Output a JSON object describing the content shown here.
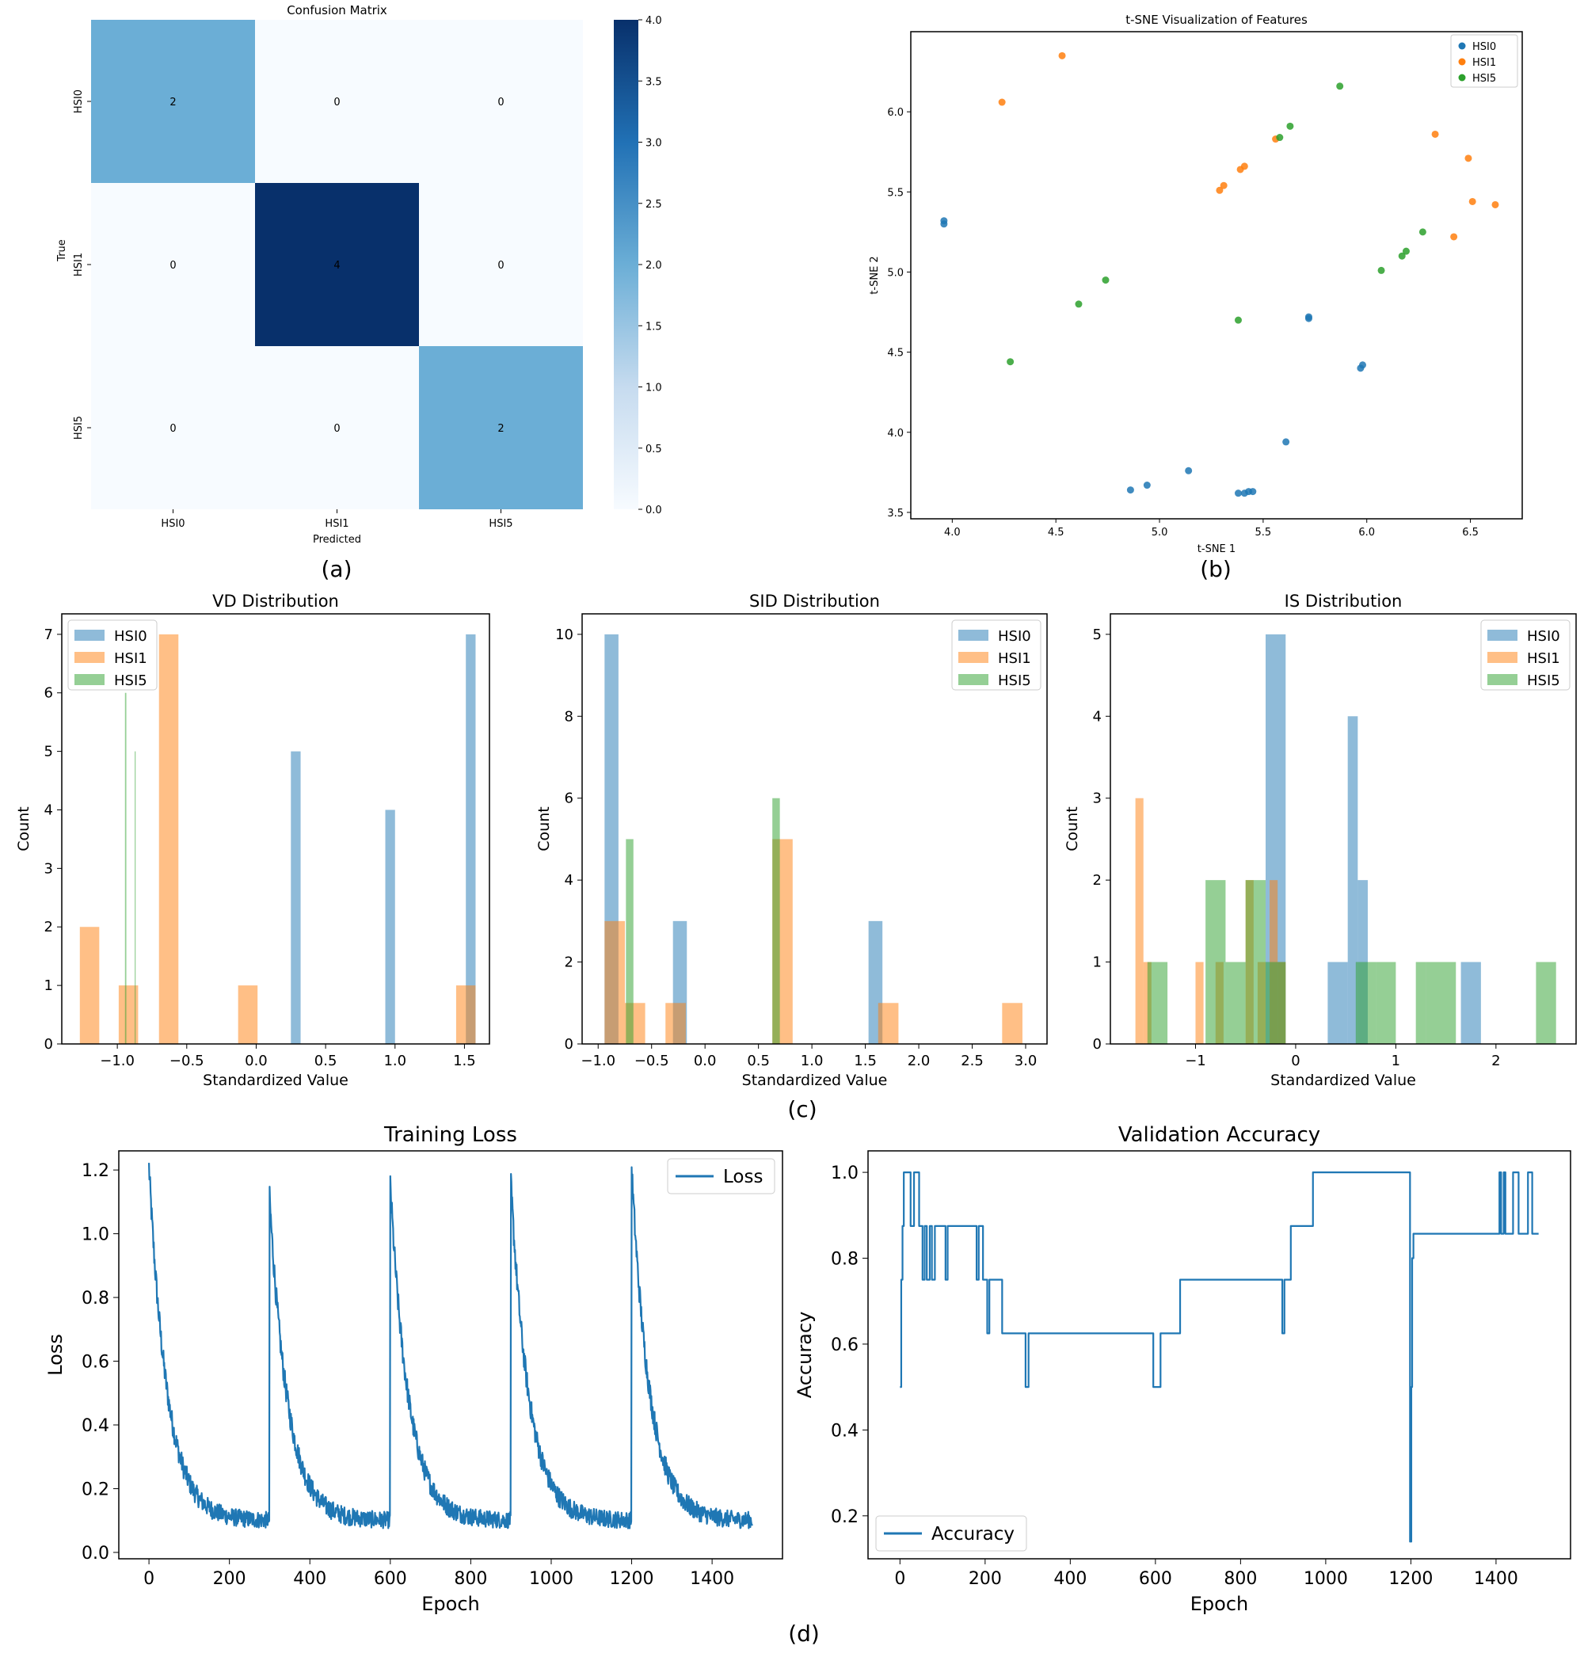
{
  "panel_labels": [
    "(a)",
    "(b)",
    "(c)",
    "(d)"
  ],
  "chart_data": [
    {
      "type": "heatmap",
      "title": "Confusion Matrix",
      "xlabel": "Predicted",
      "ylabel": "True",
      "x_categories": [
        "HSI0",
        "HSI1",
        "HSI5"
      ],
      "y_categories": [
        "HSI0",
        "HSI1",
        "HSI5"
      ],
      "matrix": [
        [
          2,
          0,
          0
        ],
        [
          0,
          4,
          0
        ],
        [
          0,
          0,
          2
        ]
      ],
      "colorbar": {
        "min": 0.0,
        "max": 4.0,
        "ticks": [
          "0.0",
          "0.5",
          "1.0",
          "1.5",
          "2.0",
          "2.5",
          "3.0",
          "3.5",
          "4.0"
        ]
      },
      "colors": {
        "low": "#f7fbff",
        "mid": "#6baed6",
        "high": "#08306b"
      }
    },
    {
      "type": "scatter",
      "title": "t-SNE Visualization of Features",
      "xlabel": "t-SNE 1",
      "ylabel": "t-SNE 2",
      "xlim": [
        3.8,
        6.75
      ],
      "ylim": [
        3.46,
        6.5
      ],
      "xticks": [
        "4.0",
        "4.5",
        "5.0",
        "5.5",
        "6.0",
        "6.5"
      ],
      "yticks": [
        "3.5",
        "4.0",
        "4.5",
        "5.0",
        "5.5",
        "6.0"
      ],
      "legend": "top-right",
      "series": [
        {
          "name": "HSI0",
          "color": "#1f77b4",
          "points": [
            [
              3.96,
              5.3
            ],
            [
              3.96,
              5.32
            ],
            [
              5.72,
              4.71
            ],
            [
              5.72,
              4.72
            ],
            [
              5.97,
              4.4
            ],
            [
              5.98,
              4.42
            ],
            [
              5.61,
              3.94
            ],
            [
              5.14,
              3.76
            ],
            [
              4.86,
              3.64
            ],
            [
              4.94,
              3.67
            ],
            [
              5.38,
              3.62
            ],
            [
              5.41,
              3.62
            ],
            [
              5.43,
              3.63
            ],
            [
              5.45,
              3.63
            ]
          ]
        },
        {
          "name": "HSI1",
          "color": "#ff7f0e",
          "points": [
            [
              4.53,
              6.35
            ],
            [
              4.24,
              6.06
            ],
            [
              5.56,
              5.83
            ],
            [
              5.39,
              5.64
            ],
            [
              5.41,
              5.66
            ],
            [
              5.29,
              5.51
            ],
            [
              5.31,
              5.54
            ],
            [
              6.33,
              5.86
            ],
            [
              6.49,
              5.71
            ],
            [
              6.51,
              5.44
            ],
            [
              6.62,
              5.42
            ],
            [
              6.42,
              5.22
            ]
          ]
        },
        {
          "name": "HSI5",
          "color": "#2ca02c",
          "points": [
            [
              5.87,
              6.16
            ],
            [
              5.63,
              5.91
            ],
            [
              5.58,
              5.84
            ],
            [
              6.27,
              5.25
            ],
            [
              6.19,
              5.13
            ],
            [
              6.17,
              5.1
            ],
            [
              6.07,
              5.01
            ],
            [
              4.74,
              4.95
            ],
            [
              4.61,
              4.8
            ],
            [
              5.38,
              4.7
            ],
            [
              4.28,
              4.44
            ]
          ]
        }
      ]
    },
    {
      "type": "bar",
      "title": "VD Distribution",
      "xlabel": "Standardized Value",
      "ylabel": "Count",
      "xlim": [
        -1.4,
        1.68
      ],
      "ylim": [
        0,
        7.35
      ],
      "xticks": [
        "−1.0",
        "−0.5",
        "0.0",
        "0.5",
        "1.0",
        "1.5"
      ],
      "xtick_values": [
        -1.0,
        -0.5,
        0.0,
        0.5,
        1.0,
        1.5
      ],
      "yticks": [
        0,
        1,
        2,
        3,
        4,
        5,
        6,
        7
      ],
      "legend": "top-left",
      "series": [
        {
          "name": "HSI0",
          "color": "#1f77b4",
          "bars": [
            [
              0.25,
              0.32,
              5
            ],
            [
              0.93,
              1.0,
              4
            ],
            [
              1.51,
              1.58,
              7
            ]
          ]
        },
        {
          "name": "HSI1",
          "color": "#ff7f0e",
          "bars": [
            [
              -1.27,
              -1.13,
              2
            ],
            [
              -0.99,
              -0.85,
              1
            ],
            [
              -0.7,
              -0.56,
              7
            ],
            [
              -0.13,
              0.01,
              1
            ],
            [
              1.44,
              1.58,
              1
            ]
          ]
        },
        {
          "name": "HSI5",
          "color": "#2ca02c",
          "bars": [
            [
              -0.945,
              -0.935,
              6
            ],
            [
              -0.875,
              -0.868,
              5
            ]
          ]
        }
      ]
    },
    {
      "type": "bar",
      "title": "SID Distribution",
      "xlabel": "Standardized Value",
      "ylabel": "Count",
      "xlim": [
        -1.15,
        3.2
      ],
      "ylim": [
        0,
        10.5
      ],
      "xticks": [
        "−1.0",
        "−0.5",
        "0.0",
        "0.5",
        "1.0",
        "1.5",
        "2.0",
        "2.5",
        "3.0"
      ],
      "xtick_values": [
        -1.0,
        -0.5,
        0.0,
        0.5,
        1.0,
        1.5,
        2.0,
        2.5,
        3.0
      ],
      "yticks": [
        0,
        2,
        4,
        6,
        8,
        10
      ],
      "legend": "top-right",
      "series": [
        {
          "name": "HSI0",
          "color": "#1f77b4",
          "bars": [
            [
              -0.94,
              -0.81,
              10
            ],
            [
              -0.3,
              -0.17,
              3
            ],
            [
              1.53,
              1.66,
              3
            ]
          ]
        },
        {
          "name": "HSI1",
          "color": "#ff7f0e",
          "bars": [
            [
              -0.94,
              -0.75,
              3
            ],
            [
              -0.75,
              -0.56,
              1
            ],
            [
              -0.37,
              -0.18,
              1
            ],
            [
              0.63,
              0.82,
              5
            ],
            [
              1.62,
              1.81,
              1
            ],
            [
              2.78,
              2.97,
              1
            ]
          ]
        },
        {
          "name": "HSI5",
          "color": "#2ca02c",
          "bars": [
            [
              -0.74,
              -0.67,
              5
            ],
            [
              0.63,
              0.7,
              6
            ]
          ]
        }
      ]
    },
    {
      "type": "bar",
      "title": "IS Distribution",
      "xlabel": "Standardized Value",
      "ylabel": "Count",
      "xlim": [
        -1.85,
        2.8
      ],
      "ylim": [
        0,
        5.25
      ],
      "xticks": [
        "−1",
        "0",
        "1",
        "2"
      ],
      "xtick_values": [
        -1,
        0,
        1,
        2
      ],
      "yticks": [
        0,
        1,
        2,
        3,
        4,
        5
      ],
      "legend": "top-right",
      "series": [
        {
          "name": "HSI0",
          "color": "#1f77b4",
          "bars": [
            [
              -0.3,
              -0.1,
              5
            ],
            [
              0.32,
              0.52,
              1
            ],
            [
              0.52,
              0.62,
              4
            ],
            [
              0.62,
              0.72,
              2
            ],
            [
              1.65,
              1.85,
              1
            ]
          ]
        },
        {
          "name": "HSI1",
          "color": "#ff7f0e",
          "bars": [
            [
              -1.6,
              -1.52,
              3
            ],
            [
              -1.52,
              -1.44,
              1
            ],
            [
              -1.0,
              -0.92,
              1
            ],
            [
              -0.8,
              -0.72,
              1
            ],
            [
              -0.5,
              -0.42,
              2
            ],
            [
              -0.38,
              -0.3,
              1
            ],
            [
              -0.26,
              -0.18,
              2
            ],
            [
              -0.18,
              -0.1,
              1
            ]
          ]
        },
        {
          "name": "HSI5",
          "color": "#2ca02c",
          "bars": [
            [
              -1.48,
              -1.28,
              1
            ],
            [
              -0.9,
              -0.7,
              2
            ],
            [
              -0.7,
              -0.5,
              1
            ],
            [
              -0.5,
              -0.3,
              2
            ],
            [
              -0.3,
              -0.1,
              1
            ],
            [
              0.6,
              0.8,
              1
            ],
            [
              0.8,
              1.0,
              1
            ],
            [
              1.2,
              1.3,
              1
            ],
            [
              1.3,
              1.6,
              1
            ],
            [
              2.4,
              2.6,
              1
            ]
          ]
        }
      ]
    },
    {
      "type": "line",
      "title": "Training Loss",
      "xlabel": "Epoch",
      "ylabel": "Loss",
      "xlim": [
        -75,
        1575
      ],
      "ylim": [
        -0.02,
        1.26
      ],
      "xticks": [
        0,
        200,
        400,
        600,
        800,
        1000,
        1200,
        1400
      ],
      "yticks": [
        "0.0",
        "0.2",
        "0.4",
        "0.6",
        "0.8",
        "1.0",
        "1.2"
      ],
      "legend": "top-right",
      "series": [
        {
          "name": "Loss",
          "color": "#1f77b4",
          "x_start": 0,
          "x_end": 1500,
          "cycle_length": 300,
          "cycle_peaks": [
            1.21,
            1.11,
            1.15,
            1.15,
            1.2
          ],
          "cycle_floor": 0.1,
          "noise": 0.04
        }
      ]
    },
    {
      "type": "line",
      "title": "Validation Accuracy",
      "xlabel": "Epoch",
      "ylabel": "Accuracy",
      "xlim": [
        -75,
        1575
      ],
      "ylim": [
        0.1,
        1.05
      ],
      "xticks": [
        0,
        200,
        400,
        600,
        800,
        1000,
        1200,
        1400
      ],
      "yticks": [
        "0.2",
        "0.4",
        "0.6",
        "0.8",
        "1.0"
      ],
      "legend": "bottom-left",
      "series": [
        {
          "name": "Accuracy",
          "color": "#1f77b4",
          "points": [
            [
              0,
              0.5
            ],
            [
              3,
              0.5
            ],
            [
              3,
              0.75
            ],
            [
              6,
              0.75
            ],
            [
              6,
              0.875
            ],
            [
              9,
              0.875
            ],
            [
              9,
              1.0
            ],
            [
              25,
              1.0
            ],
            [
              25,
              0.875
            ],
            [
              33,
              0.875
            ],
            [
              33,
              1.0
            ],
            [
              45,
              1.0
            ],
            [
              45,
              0.875
            ],
            [
              53,
              0.875
            ],
            [
              53,
              0.75
            ],
            [
              58,
              0.75
            ],
            [
              58,
              0.875
            ],
            [
              63,
              0.875
            ],
            [
              63,
              0.75
            ],
            [
              70,
              0.75
            ],
            [
              70,
              0.875
            ],
            [
              75,
              0.875
            ],
            [
              75,
              0.75
            ],
            [
              82,
              0.75
            ],
            [
              82,
              0.875
            ],
            [
              107,
              0.875
            ],
            [
              107,
              0.75
            ],
            [
              112,
              0.75
            ],
            [
              112,
              0.875
            ],
            [
              180,
              0.875
            ],
            [
              180,
              0.75
            ],
            [
              185,
              0.75
            ],
            [
              185,
              0.875
            ],
            [
              195,
              0.875
            ],
            [
              195,
              0.75
            ],
            [
              205,
              0.75
            ],
            [
              205,
              0.625
            ],
            [
              210,
              0.625
            ],
            [
              210,
              0.75
            ],
            [
              240,
              0.75
            ],
            [
              240,
              0.625
            ],
            [
              295,
              0.625
            ],
            [
              295,
              0.5
            ],
            [
              302,
              0.5
            ],
            [
              302,
              0.625
            ],
            [
              595,
              0.625
            ],
            [
              595,
              0.5
            ],
            [
              612,
              0.5
            ],
            [
              612,
              0.625
            ],
            [
              658,
              0.625
            ],
            [
              658,
              0.75
            ],
            [
              898,
              0.75
            ],
            [
              898,
              0.625
            ],
            [
              903,
              0.625
            ],
            [
              903,
              0.75
            ],
            [
              918,
              0.75
            ],
            [
              918,
              0.875
            ],
            [
              970,
              0.875
            ],
            [
              970,
              1.0
            ],
            [
              1198,
              1.0
            ],
            [
              1198,
              0.14
            ],
            [
              1201,
              0.14
            ],
            [
              1201,
              0.5
            ],
            [
              1203,
              0.5
            ],
            [
              1203,
              0.8
            ],
            [
              1206,
              0.8
            ],
            [
              1206,
              0.857
            ],
            [
              1408,
              0.857
            ],
            [
              1408,
              1.0
            ],
            [
              1412,
              1.0
            ],
            [
              1412,
              0.857
            ],
            [
              1418,
              0.857
            ],
            [
              1418,
              1.0
            ],
            [
              1422,
              1.0
            ],
            [
              1422,
              0.857
            ],
            [
              1440,
              0.857
            ],
            [
              1440,
              1.0
            ],
            [
              1453,
              1.0
            ],
            [
              1453,
              0.857
            ],
            [
              1475,
              0.857
            ],
            [
              1475,
              1.0
            ],
            [
              1485,
              1.0
            ],
            [
              1485,
              0.857
            ],
            [
              1500,
              0.857
            ]
          ]
        }
      ]
    }
  ]
}
